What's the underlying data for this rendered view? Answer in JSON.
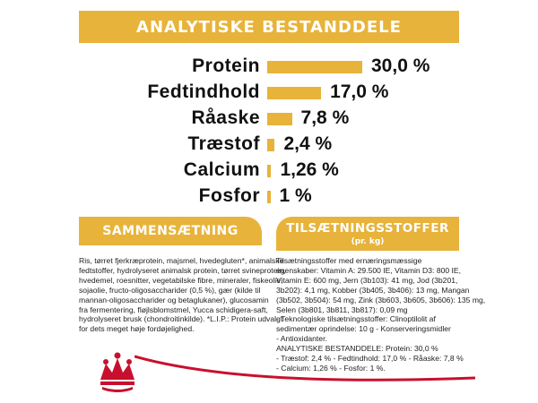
{
  "header": {
    "title": "ANALYTISKE BESTANDDELE"
  },
  "nutrients": [
    {
      "label": "Protein",
      "value": "30,0 %",
      "percent": 30.0
    },
    {
      "label": "Fedtindhold",
      "value": "17,0 %",
      "percent": 17.0
    },
    {
      "label": "Råaske",
      "value": "7,8 %",
      "percent": 7.8
    },
    {
      "label": "Træstof",
      "value": "2,4 %",
      "percent": 2.4
    },
    {
      "label": "Calcium",
      "value": "1,26 %",
      "percent": 1.26
    },
    {
      "label": "Fosfor",
      "value": "1 %",
      "percent": 1.0
    }
  ],
  "composition": {
    "title": "SAMMENSÆTNING",
    "lines": [
      "Ris, tørret fjerkræprotein, majsmel, hvedegluten*, animalske",
      "fedtstoffer, hydrolyseret animalsk protein, tørret svineprotein,",
      "hvedemel, roesnitter, vegetabilske fibre, mineraler, fiskeolie,",
      "sojaolie, fructo-oligosaccharider (0,5 %), gær (kilde til",
      "mannan-oligosaccharider og betaglukaner), glucosamin",
      "fra fermentering, fløjlsblomstmel, Yucca schidigera-saft,",
      "hydrolyseret brusk (chondroitinkilde). *L.I.P.: Protein udvalgt",
      "for dets meget høje fordøjelighed."
    ]
  },
  "additives": {
    "title": "TILSÆTNINGSSTOFFER",
    "subtitle": "(pr. kg)",
    "lines": [
      "Tilsætningsstoffer med ernæringsmæssige",
      "egenskaber: Vitamin A: 29.500 IE, Vitamin D3: 800 IE,",
      "Vitamin E: 600 mg, Jern (3b103): 41 mg, Jod (3b201,",
      "3b202): 4,1 mg, Kobber (3b405, 3b406): 13 mg, Mangan",
      "(3b502, 3b504): 54 mg, Zink (3b603, 3b605, 3b606): 135 mg,",
      "Selen (3b801, 3b811, 3b817): 0,09 mg",
      "- Teknologiske tilsætningsstoffer: Clinoptilolit af",
      "sedimentær oprindelse: 10 g - Konserveringsmidler",
      "- Antioxidanter.",
      "ANALYTISKE BESTANDDELE: Protein: 30,0 %",
      "- Træstof: 2,4 % - Fedtindhold: 17,0 % - Råaske: 7,8 %",
      "- Calcium: 1,26 % - Fosfor: 1 %."
    ]
  },
  "colors": {
    "accent": "#e8b33a",
    "brand_red": "#c8102e"
  },
  "logo": {
    "icon": "crown-icon"
  }
}
